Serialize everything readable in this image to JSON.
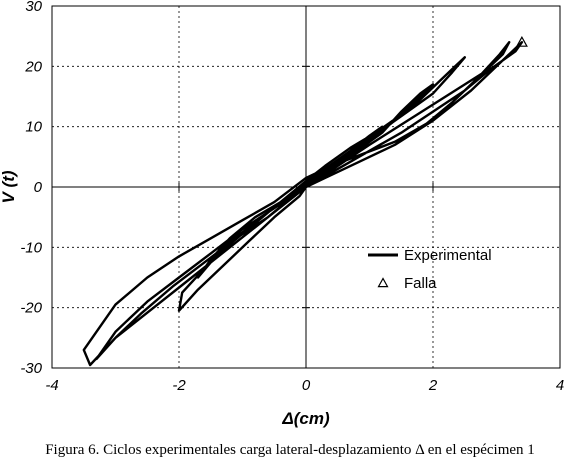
{
  "chart_data": {
    "type": "line",
    "xlabel": "Δ(cm)",
    "ylabel": "V (t)",
    "xlim": [
      -4,
      4
    ],
    "ylim": [
      -30,
      30
    ],
    "x_ticks": [
      -4,
      -2,
      0,
      2,
      4
    ],
    "y_ticks": [
      -30,
      -20,
      -10,
      0,
      10,
      20,
      30
    ],
    "x_tick_labels": [
      "-4",
      "-2",
      "0",
      "2",
      "4"
    ],
    "y_tick_labels": [
      "-30",
      "-20",
      "-10",
      "0",
      "10",
      "20",
      "30"
    ],
    "grid": "dashed",
    "legend_position": "center-right",
    "series": [
      {
        "name": "Experimental",
        "marker": "line",
        "x": [
          0.0,
          0.3,
          0.6,
          0.9,
          1.1,
          1.2,
          1.0,
          0.7,
          0.3,
          0.0,
          -0.4,
          -0.8,
          -1.2,
          -1.5,
          -1.7,
          -1.5,
          -1.2,
          -0.8,
          -0.4,
          0.0,
          0.4,
          0.8,
          1.2,
          1.5,
          1.8,
          2.0,
          1.8,
          1.5,
          1.1,
          0.7,
          0.3,
          0.0,
          -0.4,
          -0.8,
          -1.2,
          -1.6,
          -1.95,
          -2.0,
          -1.7,
          -1.3,
          -0.9,
          -0.5,
          -0.1,
          0.0,
          0.4,
          0.9,
          1.4,
          1.8,
          2.1,
          2.35,
          2.5,
          2.3,
          2.0,
          1.6,
          1.2,
          0.8,
          0.3,
          0.0,
          -0.5,
          -1.0,
          -1.5,
          -2.0,
          -2.5,
          -2.7,
          -3.0,
          -3.2,
          -3.3,
          -3.0,
          -2.4,
          -1.8,
          -1.2,
          -0.6,
          0.0,
          0.5,
          1.0,
          1.6,
          2.2,
          2.8,
          3.1,
          3.2,
          3.05,
          2.7,
          2.3,
          1.9,
          1.4,
          0.9,
          0.4,
          0.0,
          -0.5,
          -1.0,
          -1.5,
          -2.0,
          -2.5,
          -3.0,
          -3.5,
          -3.4,
          -3.0,
          -2.6,
          -2.1,
          -1.6,
          -1.1,
          -0.6,
          -0.2,
          0.0,
          0.5,
          1.0,
          1.5,
          2.0,
          2.5,
          2.9,
          3.3,
          3.4,
          3.35,
          3.1,
          2.6,
          2.0,
          1.4,
          0.8,
          0.3,
          0.0
        ],
        "y": [
          0.0,
          2.5,
          5.0,
          7.5,
          9.0,
          10.0,
          8.5,
          6.0,
          3.0,
          0.5,
          -2.5,
          -6.0,
          -9.0,
          -12.5,
          -15.0,
          -12.0,
          -8.5,
          -5.0,
          -2.5,
          0.0,
          3.0,
          6.0,
          9.0,
          12.5,
          15.5,
          17.0,
          15.0,
          12.0,
          9.0,
          6.5,
          3.5,
          1.0,
          -2.5,
          -6.0,
          -9.5,
          -13.5,
          -17.5,
          -20.5,
          -17.0,
          -13.0,
          -9.0,
          -5.0,
          -1.5,
          0.0,
          3.5,
          7.0,
          11.0,
          14.5,
          17.5,
          20.0,
          21.5,
          19.0,
          15.5,
          12.5,
          9.5,
          6.5,
          3.0,
          0.0,
          -3.5,
          -7.0,
          -11.0,
          -15.0,
          -19.0,
          -21.0,
          -24.0,
          -27.0,
          -28.5,
          -25.0,
          -20.0,
          -15.0,
          -10.0,
          -5.0,
          0.0,
          3.5,
          7.0,
          11.0,
          15.0,
          19.0,
          22.0,
          24.0,
          22.0,
          18.0,
          14.0,
          10.5,
          7.5,
          5.5,
          3.5,
          1.5,
          -2.5,
          -5.5,
          -8.5,
          -11.5,
          -15.0,
          -19.5,
          -27.0,
          -29.5,
          -25.0,
          -21.0,
          -16.5,
          -12.5,
          -8.5,
          -5.0,
          -1.5,
          0.0,
          3.0,
          6.0,
          9.0,
          12.5,
          16.0,
          19.5,
          22.5,
          24.0,
          23.5,
          21.0,
          16.0,
          11.0,
          7.0,
          4.0,
          1.5,
          0.0
        ]
      },
      {
        "name": "Falla",
        "marker": "triangle",
        "x": [
          3.4
        ],
        "y": [
          24.0
        ]
      }
    ]
  },
  "caption": "Figura 6.  Ciclos experimentales carga lateral-desplazamiento Δ en el espécimen 1"
}
